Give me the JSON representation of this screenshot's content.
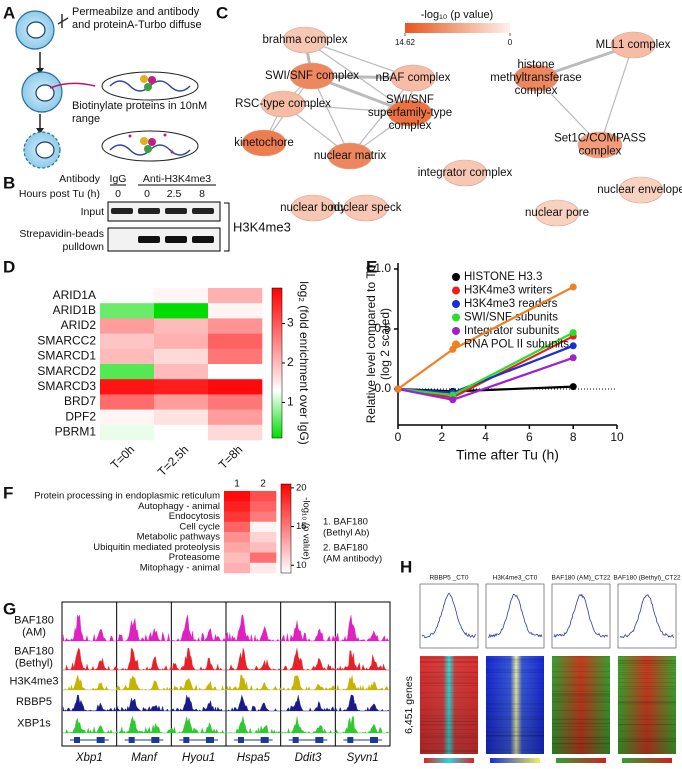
{
  "panel_labels": [
    "A",
    "B",
    "C",
    "D",
    "E",
    "F",
    "G",
    "H"
  ],
  "schematic": {
    "step1": [
      "Permeabilze and antibody",
      "and proteinA-Turbo diffuse"
    ],
    "step2": [
      "Biotinylate proteins in 10nM",
      "range"
    ]
  },
  "blot": {
    "antibody_label": "Antibody",
    "igg": "IgG",
    "anti": "Anti-H3K4me3",
    "hours_label": "Hours post Tu (h)",
    "hours": [
      0,
      0,
      2.5,
      8
    ],
    "rows": [
      [
        "Input"
      ],
      [
        "Strepavidin-beads",
        "pulldown"
      ]
    ],
    "target": "H3K4me3"
  },
  "network": {
    "colorbar_title": "-log₁₀ (p value)",
    "colorscale": [
      [
        14.62,
        "#e8561c"
      ],
      [
        0,
        "#fdf1ec"
      ]
    ],
    "colorbar_ticks": [
      14.62,
      0
    ],
    "nodes": [
      {
        "label": [
          "brahma complex"
        ],
        "value": 4
      },
      {
        "label": [
          "SWI/SNF complex"
        ],
        "value": 10
      },
      {
        "label": [
          "nBAF complex"
        ],
        "value": 5
      },
      {
        "label": [
          "RSC-type complex"
        ],
        "value": 5
      },
      {
        "label": [
          "SWI/SNF",
          "superfamily-type",
          "complex"
        ],
        "value": 12
      },
      {
        "label": [
          "kinetochore"
        ],
        "value": 11
      },
      {
        "label": [
          "nuclear matrix"
        ],
        "value": 10
      },
      {
        "label": [
          "histone",
          "methyltransferase",
          "complex"
        ],
        "value": 10
      },
      {
        "label": [
          "MLL1 complex"
        ],
        "value": 5
      },
      {
        "label": [
          "Set1C/COMPASS",
          "complex"
        ],
        "value": 8
      },
      {
        "label": [
          "integrator complex"
        ],
        "value": 4
      },
      {
        "label": [
          "nuclear body"
        ],
        "value": 4
      },
      {
        "label": [
          "nuclear speck"
        ],
        "value": 4
      },
      {
        "label": [
          "nuclear envelope"
        ],
        "value": 3
      },
      {
        "label": [
          "nuclear pore"
        ],
        "value": 3
      }
    ]
  },
  "chart_data": [
    {
      "type": "heatmap",
      "x": [
        "T=0h",
        "T=2.5h",
        "T=8h"
      ],
      "y": [
        "ARID1A",
        "ARID1B",
        "ARID2",
        "SMARCC2",
        "SMARCD1",
        "SMARCD2",
        "SMARCD3",
        "BRD7",
        "DPF2",
        "PBRM1"
      ],
      "values": [
        [
          1.3,
          1.4,
          2.1
        ],
        [
          0.6,
          0.1,
          1.4
        ],
        [
          2.3,
          2.0,
          2.4
        ],
        [
          1.9,
          2.1,
          2.9
        ],
        [
          2.0,
          1.7,
          2.7
        ],
        [
          0.5,
          2.0,
          1.3
        ],
        [
          3.7,
          3.6,
          3.8
        ],
        [
          2.8,
          2.3,
          2.7
        ],
        [
          1.4,
          1.6,
          2.3
        ],
        [
          1.2,
          1.3,
          1.7
        ]
      ],
      "zlim": [
        0.1,
        3.9
      ],
      "zticks": [
        1,
        2,
        3
      ],
      "colorscale": [
        [
          0.1,
          "#00dd00"
        ],
        [
          1.3,
          "#ffffff"
        ],
        [
          3.9,
          "#ff0000"
        ]
      ],
      "colorbar_label": "log₂ (fold enrichment over IgG)"
    },
    {
      "type": "line",
      "x": [
        0,
        2.5,
        8
      ],
      "xlim": [
        0,
        10
      ],
      "xticks": [
        0,
        2,
        4,
        6,
        8,
        10
      ],
      "ylim": [
        -0.3,
        1.05
      ],
      "yticks": [
        {
          "value": 0,
          "label": "0.0"
        },
        0.5,
        {
          "value": 1,
          "label": "1.0"
        }
      ],
      "xlabel": "Time after Tu (h)",
      "ylabel": [
        "Relative level compared to T0",
        "(log 2 scaled)"
      ],
      "series": [
        {
          "name": "HISTONE H3.3",
          "color": "#000000",
          "values": [
            0,
            -0.02,
            0.02
          ]
        },
        {
          "name": "H3K4me3 writers",
          "color": "#e8201a",
          "values": [
            0,
            -0.07,
            0.44
          ]
        },
        {
          "name": "H3K4me3 readers",
          "color": "#1a2ed8",
          "values": [
            0,
            -0.03,
            0.36
          ]
        },
        {
          "name": "SWI/SNF subunits",
          "color": "#28e028",
          "values": [
            0,
            -0.05,
            0.47
          ]
        },
        {
          "name": "Integrator subunits",
          "color": "#a020d0",
          "values": [
            0,
            -0.09,
            0.26
          ]
        },
        {
          "name": "RNA POL II subunits",
          "color": "#f08020",
          "values": [
            0,
            0.33,
            0.85
          ]
        }
      ]
    },
    {
      "type": "heatmap",
      "x": [
        1,
        2
      ],
      "y": [
        "Protein processing in endoplasmic reticulum",
        "Autophagy - animal",
        "Endocytosis",
        "Cell cycle",
        "Metabolic pathways",
        "Ubiquitin mediated proteolysis",
        "Proteasome",
        "Mitophagy - animal"
      ],
      "values": [
        [
          20,
          17
        ],
        [
          19,
          16
        ],
        [
          18,
          15
        ],
        [
          16,
          9.5
        ],
        [
          14,
          11
        ],
        [
          13,
          12
        ],
        [
          12,
          15.5
        ],
        [
          12.5,
          10
        ]
      ],
      "zlim": [
        9,
        20.5
      ],
      "zticks": [
        10,
        15,
        20
      ],
      "colorscale": [
        [
          9,
          "#ffffff"
        ],
        [
          20.5,
          "#ff0000"
        ]
      ],
      "colorbar_label": "-log₁₀ (p value)",
      "legend": [
        [
          "1. BAF180",
          "(Bethyl Ab)"
        ],
        [
          "2. BAF180",
          "(AM antibody)"
        ]
      ]
    }
  ],
  "tracks": {
    "names": [
      [
        "BAF180",
        "(AM)"
      ],
      [
        "BAF180",
        "(Bethyl)"
      ],
      [
        "H3K4me3"
      ],
      [
        "RBBP5"
      ],
      [
        "XBP1s"
      ]
    ],
    "genes": [
      "Xbp1",
      "Manf",
      "Hyou1",
      "Hspa5",
      "Ddit3",
      "Syvn1"
    ]
  },
  "profiles": {
    "titles": [
      "RBBP5 _CT0",
      "H3K4me3_CT0",
      "BAF180 (AM)_CT22",
      "BAF180 (Bethyl)_CT22"
    ],
    "row_label": "6,451 genes"
  }
}
